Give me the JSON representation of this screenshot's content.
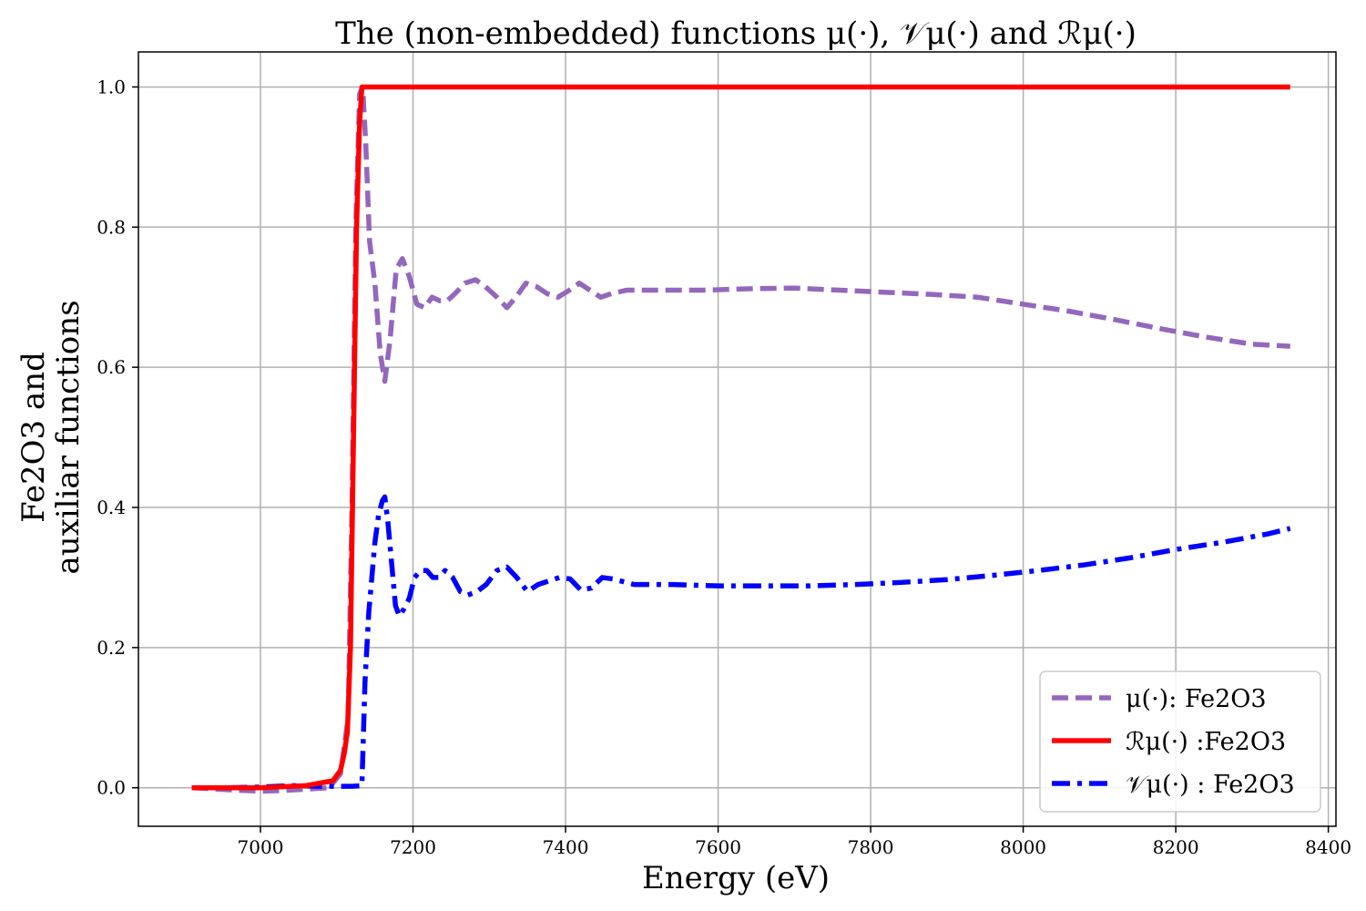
{
  "chart_data": {
    "type": "line",
    "title": "The (non-embedded) functions μ(·), 𝒱μ(·) and ℛμ(·)",
    "xlabel": "Energy (eV)",
    "ylabel_lines": [
      "Fe2O3 and",
      "auxiliar functions"
    ],
    "xlim": [
      6840,
      8410
    ],
    "ylim": [
      -0.055,
      1.05
    ],
    "x_ticks": [
      7000,
      7200,
      7400,
      7600,
      7800,
      8000,
      8200,
      8400
    ],
    "y_ticks": [
      0.0,
      0.2,
      0.4,
      0.6,
      0.8,
      1.0
    ],
    "x_tick_labels": [
      "7000",
      "7200",
      "7400",
      "7600",
      "7800",
      "8000",
      "8200",
      "8400"
    ],
    "y_tick_labels": [
      "0.0",
      "0.2",
      "0.4",
      "0.6",
      "0.8",
      "1.0"
    ],
    "grid": true,
    "legend_position": "bottom-right",
    "series": [
      {
        "name": "μ(·): Fe2O3",
        "color": "#9467bd",
        "dash": "dashed",
        "x": [
          6910,
          6960,
          7000,
          7030,
          7060,
          7090,
          7105,
          7115,
          7120,
          7125,
          7130,
          7134,
          7138,
          7143,
          7150,
          7157,
          7163,
          7170,
          7178,
          7186,
          7195,
          7205,
          7215,
          7225,
          7235,
          7245,
          7255,
          7268,
          7282,
          7295,
          7310,
          7323,
          7335,
          7348,
          7362,
          7376,
          7390,
          7405,
          7418,
          7432,
          7446,
          7460,
          7480,
          7520,
          7580,
          7640,
          7700,
          7760,
          7820,
          7880,
          7940,
          8000,
          8060,
          8120,
          8180,
          8240,
          8300,
          8350
        ],
        "y": [
          0.0,
          -0.003,
          -0.005,
          -0.004,
          -0.002,
          0.0,
          0.02,
          0.1,
          0.4,
          0.8,
          0.99,
          1.0,
          0.92,
          0.78,
          0.72,
          0.62,
          0.58,
          0.64,
          0.74,
          0.755,
          0.73,
          0.69,
          0.685,
          0.7,
          0.695,
          0.695,
          0.705,
          0.72,
          0.725,
          0.715,
          0.7,
          0.685,
          0.7,
          0.72,
          0.715,
          0.705,
          0.7,
          0.71,
          0.72,
          0.71,
          0.7,
          0.705,
          0.71,
          0.71,
          0.71,
          0.712,
          0.713,
          0.71,
          0.707,
          0.704,
          0.7,
          0.69,
          0.68,
          0.668,
          0.655,
          0.643,
          0.633,
          0.63
        ]
      },
      {
        "name": "ℛμ(·) :Fe2O3",
        "color": "#ff0000",
        "dash": "solid",
        "x": [
          6910,
          7000,
          7060,
          7095,
          7105,
          7110,
          7114,
          7118,
          7122,
          7126,
          7130,
          7133,
          7140,
          7200,
          7400,
          7600,
          7800,
          8000,
          8200,
          8350
        ],
        "y": [
          0.0,
          0.0,
          0.003,
          0.01,
          0.025,
          0.05,
          0.08,
          0.2,
          0.5,
          0.8,
          0.95,
          1.0,
          1.0,
          1.0,
          1.0,
          1.0,
          1.0,
          1.0,
          1.0,
          1.0
        ]
      },
      {
        "name": "𝒱μ(·) : Fe2O3",
        "color": "#0000ff",
        "dash": "dashdot",
        "x": [
          6910,
          6960,
          7000,
          7040,
          7080,
          7100,
          7120,
          7133,
          7137,
          7142,
          7146,
          7150,
          7155,
          7160,
          7163,
          7167,
          7172,
          7177,
          7182,
          7188,
          7195,
          7202,
          7210,
          7218,
          7226,
          7234,
          7242,
          7252,
          7262,
          7272,
          7284,
          7296,
          7310,
          7323,
          7336,
          7350,
          7364,
          7378,
          7392,
          7406,
          7420,
          7434,
          7448,
          7462,
          7490,
          7540,
          7600,
          7660,
          7720,
          7780,
          7840,
          7900,
          7960,
          8020,
          8080,
          8140,
          8200,
          8260,
          8320,
          8350
        ],
        "y": [
          0.0,
          0.0,
          0.001,
          0.003,
          0.002,
          0.002,
          0.002,
          0.003,
          0.15,
          0.25,
          0.3,
          0.35,
          0.39,
          0.41,
          0.415,
          0.38,
          0.32,
          0.26,
          0.245,
          0.255,
          0.27,
          0.3,
          0.31,
          0.31,
          0.3,
          0.3,
          0.31,
          0.3,
          0.28,
          0.275,
          0.28,
          0.29,
          0.31,
          0.315,
          0.3,
          0.28,
          0.29,
          0.295,
          0.3,
          0.298,
          0.282,
          0.285,
          0.3,
          0.298,
          0.29,
          0.29,
          0.288,
          0.288,
          0.288,
          0.29,
          0.293,
          0.297,
          0.303,
          0.31,
          0.318,
          0.328,
          0.34,
          0.35,
          0.362,
          0.37
        ]
      }
    ]
  }
}
